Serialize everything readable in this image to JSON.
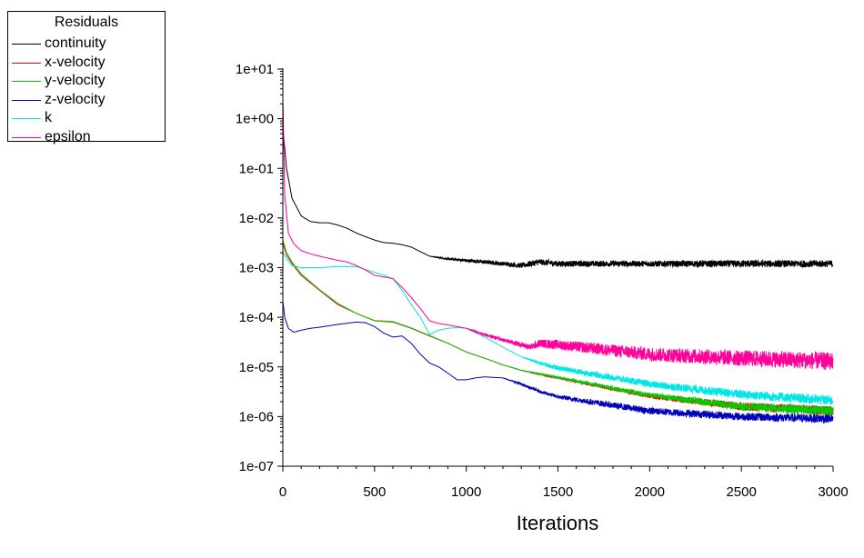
{
  "chart_data": {
    "type": "line",
    "title": "",
    "xlabel": "Iterations",
    "ylabel": "",
    "x_scale": "linear",
    "y_scale": "log",
    "xlim": [
      0,
      3000
    ],
    "ylim": [
      1e-07,
      10
    ],
    "x_ticks": [
      "0",
      "500",
      "1000",
      "1500",
      "2000",
      "2500",
      "3000"
    ],
    "y_ticks": [
      "1e+01",
      "1e+00",
      "1e-01",
      "1e-02",
      "1e-03",
      "1e-04",
      "1e-05",
      "1e-06",
      "1e-07"
    ],
    "grid": false,
    "legend": {
      "title": "Residuals",
      "position": "top-left"
    },
    "series": [
      {
        "name": "continuity",
        "color": "#000000",
        "x": [
          1,
          20,
          50,
          100,
          150,
          200,
          250,
          300,
          350,
          400,
          450,
          500,
          550,
          600,
          650,
          700,
          750,
          800,
          900,
          1000,
          1100,
          1200,
          1300,
          1350,
          1400,
          1500,
          2000,
          2500,
          3000
        ],
        "y": [
          0.6,
          0.1,
          0.025,
          0.011,
          0.0085,
          0.008,
          0.008,
          0.0072,
          0.0062,
          0.005,
          0.0042,
          0.0036,
          0.0032,
          0.0031,
          0.0029,
          0.0026,
          0.0021,
          0.0017,
          0.0015,
          0.0014,
          0.0013,
          0.0012,
          0.0011,
          0.0012,
          0.0013,
          0.0012,
          0.0012,
          0.0012,
          0.0012
        ],
        "noise": [
          0,
          0,
          0,
          0,
          0,
          0,
          0,
          0,
          0,
          0,
          0,
          0,
          0,
          0,
          0,
          0,
          0,
          0,
          0.02,
          0.03,
          0.04,
          0.04,
          0.05,
          0.06,
          0.06,
          0.06,
          0.06,
          0.07,
          0.07
        ]
      },
      {
        "name": "x-velocity",
        "color": "#ff0000",
        "x": [
          1,
          20,
          50,
          100,
          200,
          300,
          400,
          500,
          600,
          700,
          800,
          900,
          1000,
          1100,
          1200,
          1300,
          1500,
          2000,
          2500,
          3000
        ],
        "y": [
          0.003,
          0.0018,
          0.0012,
          0.0007,
          0.00035,
          0.00018,
          0.00012,
          8.5e-05,
          8e-05,
          6e-05,
          4.2e-05,
          3e-05,
          2e-05,
          1.5e-05,
          1.1e-05,
          8.5e-06,
          6e-06,
          2.6e-06,
          1.6e-06,
          1.3e-06
        ],
        "noise": [
          0,
          0,
          0,
          0,
          0,
          0,
          0,
          0,
          0,
          0,
          0,
          0,
          0,
          0,
          0,
          0,
          0.02,
          0.05,
          0.08,
          0.1
        ]
      },
      {
        "name": "y-velocity",
        "color": "#00cc00",
        "x": [
          1,
          20,
          50,
          100,
          200,
          300,
          400,
          500,
          600,
          700,
          800,
          900,
          1000,
          1100,
          1200,
          1300,
          1500,
          2000,
          2500,
          3000
        ],
        "y": [
          0.0035,
          0.002,
          0.0013,
          0.00075,
          0.00036,
          0.00019,
          0.00012,
          8.6e-05,
          8.2e-05,
          6.1e-05,
          4.3e-05,
          3e-05,
          2e-05,
          1.5e-05,
          1.1e-05,
          8.6e-06,
          6.1e-06,
          2.7e-06,
          1.6e-06,
          1.3e-06
        ],
        "noise": [
          0,
          0,
          0,
          0,
          0,
          0,
          0,
          0,
          0,
          0,
          0,
          0,
          0,
          0,
          0,
          0,
          0.02,
          0.05,
          0.08,
          0.1
        ]
      },
      {
        "name": "z-velocity",
        "color": "#0000bb",
        "x": [
          1,
          10,
          30,
          60,
          100,
          150,
          200,
          300,
          400,
          450,
          500,
          550,
          600,
          650,
          700,
          750,
          800,
          850,
          900,
          950,
          1000,
          1050,
          1100,
          1200,
          1300,
          1400,
          1500,
          1750,
          2000,
          2500,
          3000
        ],
        "y": [
          0.0002,
          0.0001,
          6e-05,
          5e-05,
          5.5e-05,
          6e-05,
          6.3e-05,
          7.2e-05,
          8e-05,
          7.8e-05,
          6.5e-05,
          4.8e-05,
          4e-05,
          4.2e-05,
          3e-05,
          1.8e-05,
          1.2e-05,
          1e-05,
          7.5e-06,
          5.5e-06,
          5.5e-06,
          6e-06,
          6.3e-06,
          6e-06,
          4.5e-06,
          3.2e-06,
          2.5e-06,
          1.8e-06,
          1.3e-06,
          1e-06,
          9e-07
        ],
        "noise": [
          0,
          0,
          0,
          0,
          0,
          0,
          0,
          0,
          0,
          0,
          0,
          0,
          0,
          0,
          0,
          0,
          0,
          0,
          0,
          0,
          0,
          0,
          0,
          0,
          0.02,
          0.03,
          0.04,
          0.06,
          0.07,
          0.08,
          0.09
        ]
      },
      {
        "name": "k",
        "color": "#00e5e5",
        "x": [
          1,
          20,
          50,
          100,
          150,
          200,
          300,
          400,
          500,
          550,
          600,
          650,
          700,
          750,
          800,
          850,
          900,
          950,
          1000,
          1100,
          1200,
          1300,
          1400,
          1500,
          2000,
          2500,
          3000
        ],
        "y": [
          0.002,
          0.0015,
          0.0011,
          0.001,
          0.001,
          0.001,
          0.00105,
          0.00105,
          0.0008,
          0.0007,
          0.0006,
          0.00035,
          0.00018,
          0.0001,
          4.5e-05,
          5.5e-05,
          6e-05,
          6.2e-05,
          6e-05,
          4e-05,
          2.5e-05,
          1.6e-05,
          1.2e-05,
          9.5e-06,
          4.5e-06,
          2.8e-06,
          2.1e-06
        ],
        "noise": [
          0,
          0,
          0,
          0,
          0,
          0,
          0,
          0,
          0,
          0,
          0,
          0,
          0,
          0,
          0,
          0,
          0,
          0,
          0,
          0,
          0,
          0,
          0.03,
          0.05,
          0.07,
          0.09,
          0.1
        ]
      },
      {
        "name": "epsilon",
        "color": "#ff0099",
        "x": [
          1,
          10,
          30,
          60,
          100,
          150,
          200,
          300,
          350,
          400,
          450,
          500,
          550,
          600,
          650,
          700,
          750,
          800,
          850,
          900,
          1000,
          1100,
          1200,
          1300,
          1350,
          1400,
          1500,
          2000,
          2500,
          3000
        ],
        "y": [
          2.0,
          0.03,
          0.005,
          0.003,
          0.0022,
          0.0019,
          0.0017,
          0.0014,
          0.0013,
          0.0011,
          0.0009,
          0.0007,
          0.00065,
          0.0006,
          0.0004,
          0.00025,
          0.00015,
          8.5e-05,
          7.5e-05,
          7e-05,
          6e-05,
          4.5e-05,
          3.5e-05,
          2.8e-05,
          2.5e-05,
          3e-05,
          2.8e-05,
          1.8e-05,
          1.5e-05,
          1.3e-05
        ],
        "noise": [
          0,
          0,
          0,
          0,
          0,
          0,
          0,
          0,
          0,
          0,
          0,
          0,
          0,
          0,
          0,
          0,
          0,
          0,
          0,
          0,
          0,
          0.03,
          0.04,
          0.05,
          0.06,
          0.08,
          0.1,
          0.14,
          0.16,
          0.18
        ]
      }
    ]
  }
}
